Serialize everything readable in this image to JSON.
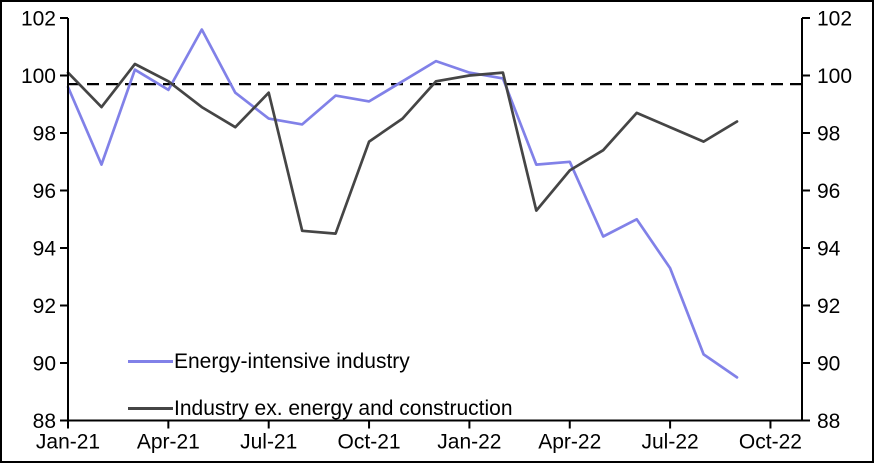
{
  "chart_data": {
    "type": "line",
    "title": "",
    "xlabel": "",
    "ylabel": "",
    "categories": [
      "Jan-21",
      "Feb-21",
      "Mar-21",
      "Apr-21",
      "May-21",
      "Jun-21",
      "Jul-21",
      "Aug-21",
      "Sep-21",
      "Oct-21",
      "Nov-21",
      "Dec-21",
      "Jan-22",
      "Feb-22",
      "Mar-22",
      "Apr-22",
      "May-22",
      "Jun-22",
      "Jul-22",
      "Aug-22",
      "Sep-22"
    ],
    "series": [
      {
        "name": "Energy-intensive industry",
        "color": "#8181E8",
        "values": [
          99.6,
          96.9,
          100.2,
          99.5,
          101.6,
          99.4,
          98.5,
          98.3,
          99.3,
          99.1,
          99.8,
          100.5,
          100.1,
          99.9,
          96.9,
          97.0,
          94.4,
          95.0,
          93.3,
          90.3,
          89.5
        ]
      },
      {
        "name": "Industry ex. energy and construction",
        "color": "#454545",
        "values": [
          100.1,
          98.9,
          100.4,
          99.8,
          98.9,
          98.2,
          99.4,
          94.6,
          94.5,
          97.7,
          98.5,
          99.8,
          100.0,
          100.1,
          95.3,
          96.7,
          97.4,
          98.7,
          98.2,
          97.7,
          98.4
        ]
      }
    ],
    "reference_line": {
      "value": 99.7,
      "style": "dashed",
      "color": "#000000"
    },
    "y_ticks": [
      88,
      90,
      92,
      94,
      96,
      98,
      100,
      102
    ],
    "ylim": [
      88,
      102
    ],
    "x_tick_labels": [
      "Jan-21",
      "Apr-21",
      "Jul-21",
      "Oct-21",
      "Jan-22",
      "Apr-22",
      "Jul-22",
      "Oct-22"
    ],
    "x_tick_month_indices": [
      0,
      3,
      6,
      9,
      12,
      15,
      18,
      21
    ],
    "dual_y_axis": true,
    "grid": false,
    "legend_position": "inside-bottom-left",
    "axis_color": "#000000"
  }
}
